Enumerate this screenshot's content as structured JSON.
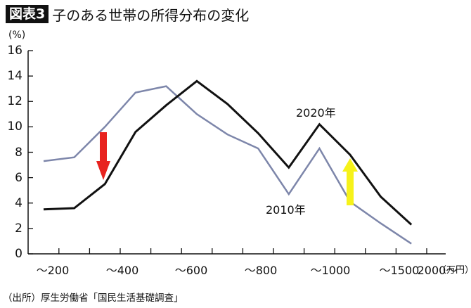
{
  "header": {
    "badge": "図表3",
    "title": "子のある世帯の所得分布の変化"
  },
  "source": "（出所）厚生労働省「国民生活基礎調査」",
  "colors": {
    "series_2020": "#111111",
    "series_2010": "#7d86aa",
    "arrow_down": "#e8231f",
    "arrow_up": "#f6f21a"
  },
  "chart_data": {
    "type": "line",
    "title": "子のある世帯の所得分布の変化",
    "xlabel": "（万円）",
    "ylabel": "(%)",
    "ylim": [
      0,
      16
    ],
    "yticks": [
      0,
      2,
      4,
      6,
      8,
      10,
      12,
      14,
      16
    ],
    "x_tick_labels": [
      "～200",
      "～400",
      "～600",
      "～800",
      "～1000",
      "～1500",
      "2000～"
    ],
    "categories": [
      "～100",
      "～200",
      "～300",
      "～400",
      "～500",
      "～600",
      "～700",
      "～800",
      "～900",
      "～1000",
      "～1500",
      "～2000",
      "2000～"
    ],
    "series": [
      {
        "name": "2020年",
        "values": [
          3.5,
          3.6,
          5.5,
          9.6,
          11.7,
          13.6,
          11.8,
          9.5,
          6.8,
          10.2,
          7.8,
          4.5,
          2.3
        ]
      },
      {
        "name": "2010年",
        "values": [
          7.3,
          7.6,
          10.0,
          12.7,
          13.2,
          11.0,
          9.4,
          8.3,
          4.7,
          8.3,
          4.1,
          2.4,
          0.8
        ]
      }
    ],
    "annotations": [
      {
        "type": "arrow-down",
        "color": "#e8231f",
        "near_category": "～300"
      },
      {
        "type": "arrow-up",
        "color": "#f6f21a",
        "near_category": "～1500"
      }
    ],
    "legend": "inline labels",
    "grid": false
  }
}
